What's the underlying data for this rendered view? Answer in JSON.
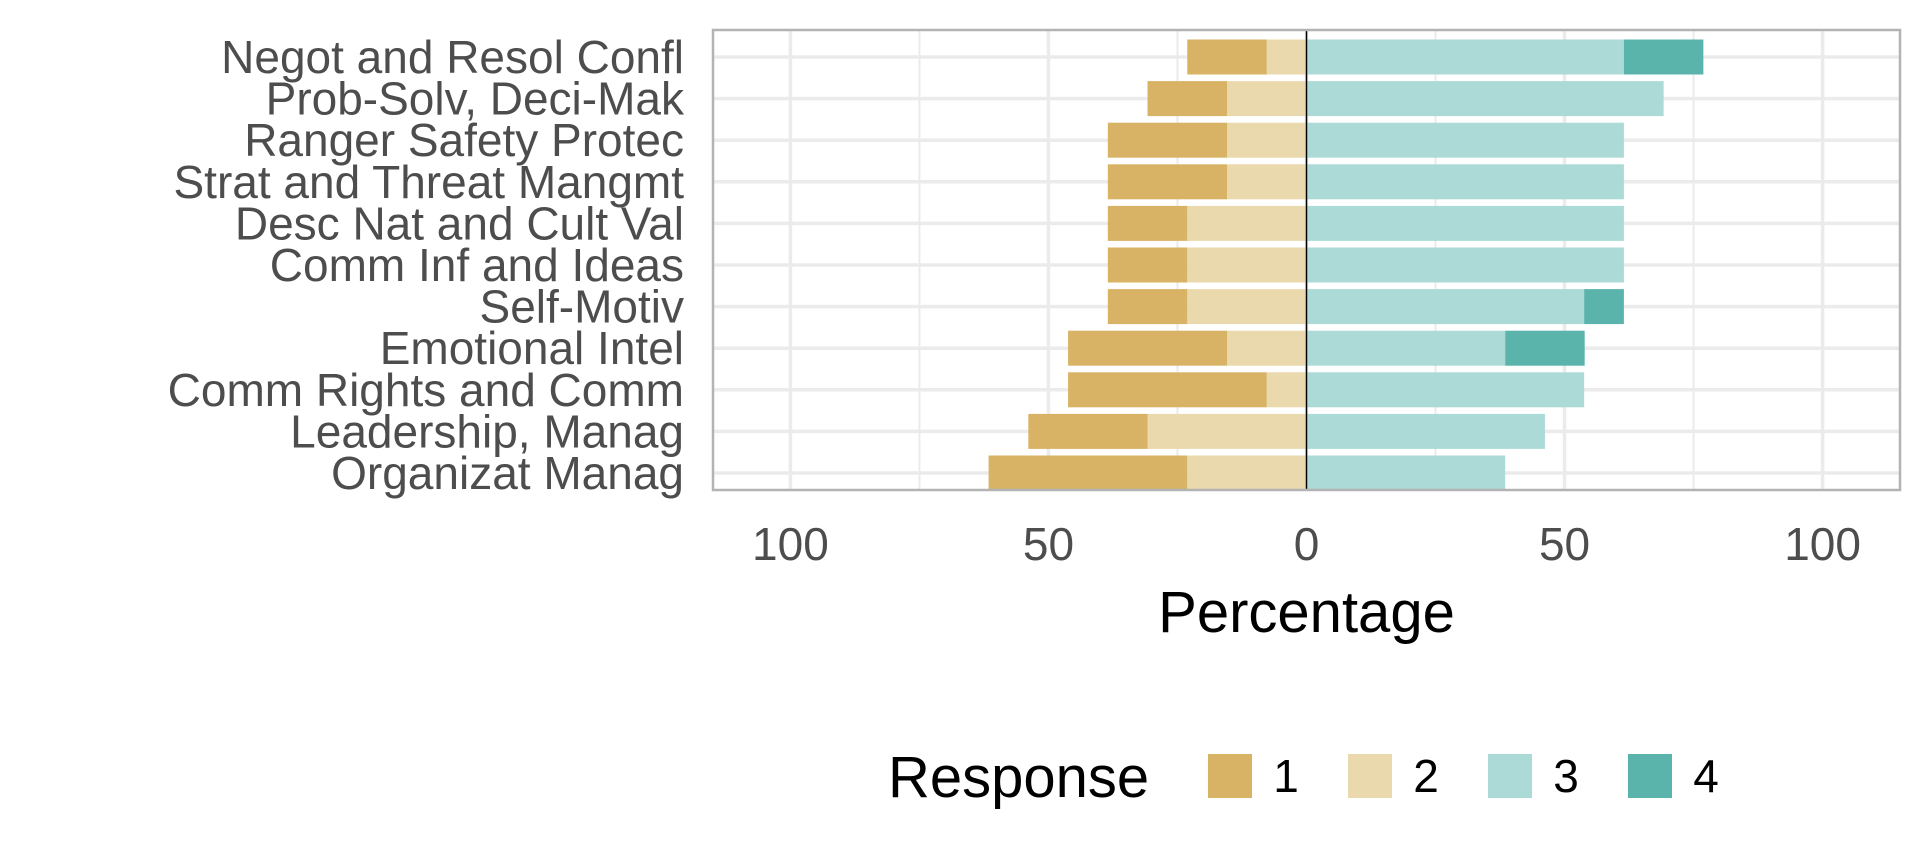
{
  "chart_data": {
    "type": "bar",
    "orientation": "horizontal",
    "stacking": "diverging",
    "xlabel": "Percentage",
    "xlim": [
      -115,
      115
    ],
    "x_ticks": [
      -100,
      -50,
      0,
      50,
      100
    ],
    "x_tick_labels": [
      "100",
      "50",
      "0",
      "50",
      "100"
    ],
    "categories": [
      "Negot and Resol Confl",
      "Prob-Solv, Deci-Mak",
      "Ranger Safety Protec",
      "Strat and Threat Mangmt",
      "Desc Nat and Cult Val",
      "Comm Inf and Ideas",
      "Self-Motiv",
      "Emotional Intel",
      "Comm Rights and Comm",
      "Leadership, Manag",
      "Organizat Manag"
    ],
    "series": [
      {
        "name": "1",
        "color": "#d8b365",
        "side": "negative",
        "values": [
          15.4,
          15.4,
          23.1,
          23.1,
          15.4,
          15.4,
          15.4,
          30.8,
          38.5,
          23.1,
          38.5
        ]
      },
      {
        "name": "2",
        "color": "#ebd9ae",
        "side": "negative",
        "values": [
          7.7,
          15.4,
          15.4,
          15.4,
          23.1,
          23.1,
          23.1,
          15.4,
          7.7,
          30.8,
          23.1
        ]
      },
      {
        "name": "3",
        "color": "#acdad6",
        "side": "positive",
        "values": [
          61.5,
          69.2,
          61.5,
          61.5,
          61.5,
          61.5,
          53.8,
          38.5,
          53.8,
          46.2,
          38.5
        ]
      },
      {
        "name": "4",
        "color": "#5ab4ac",
        "side": "positive",
        "values": [
          15.4,
          0,
          0,
          0,
          0,
          0,
          7.7,
          15.4,
          0,
          0,
          0
        ]
      }
    ],
    "grid": true,
    "legend": {
      "title": "Response",
      "position": "bottom"
    },
    "colors": {
      "zero_line": "#000000",
      "grid": "#ebebeb",
      "border": "#b3b3b3"
    }
  }
}
